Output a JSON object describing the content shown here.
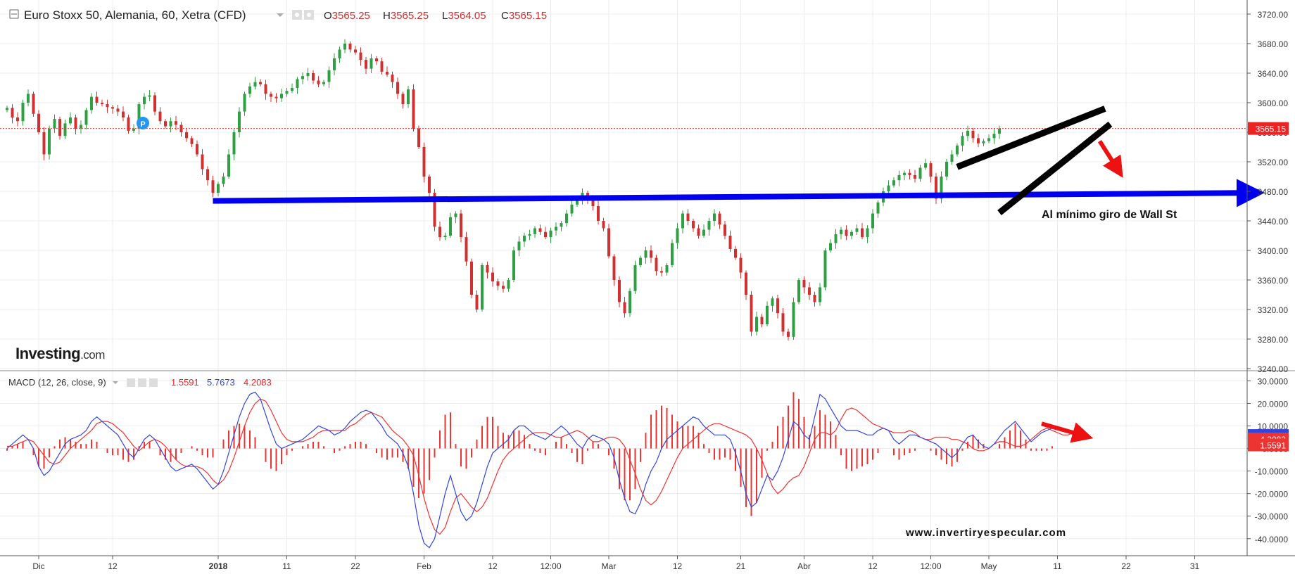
{
  "header": {
    "title": "Euro Stoxx 50, Alemania, 60, Xetra (CFD)",
    "ohlc": [
      {
        "k": "O",
        "v": "3565.25"
      },
      {
        "k": "H",
        "v": "3565.25"
      },
      {
        "k": "L",
        "v": "3564.05"
      },
      {
        "k": "C",
        "v": "3565.15"
      }
    ]
  },
  "macd_header": {
    "label": "MACD (12, 26, close, 9)",
    "hist": "1.5591",
    "macd": "5.7673",
    "signal": "4.2083"
  },
  "brand": {
    "name": "Investing",
    "suffix": ".com"
  },
  "annotation": "Al mínimo giro de Wall St",
  "watermark": "www.invertiryespecular.com",
  "colors": {
    "up": "#2ea043",
    "down": "#d0302f",
    "support_line": "#0000ee",
    "wedge": "#000000",
    "arrow": "#ee1111",
    "macd_line": "#3344dd",
    "signal_line": "#ee3333",
    "price_tag": "#ee2222"
  },
  "chart_data": [
    {
      "type": "candlestick",
      "ylim": [
        3240,
        3720
      ],
      "y_ticks": [
        "3720.00",
        "3680.00",
        "3640.00",
        "3600.00",
        "3560.00",
        "3520.00",
        "3480.00",
        "3440.00",
        "3400.00",
        "3360.00",
        "3320.00",
        "3280.00",
        "3240.00"
      ],
      "last_price": "3565.15",
      "x_ticks": [
        {
          "label": "Dic",
          "i": 6
        },
        {
          "label": "12",
          "i": 20
        },
        {
          "label": "2018",
          "i": 40
        },
        {
          "label": "11",
          "i": 53
        },
        {
          "label": "22",
          "i": 66
        },
        {
          "label": "Feb",
          "i": 79
        },
        {
          "label": "12",
          "i": 92
        },
        {
          "label": "12:00",
          "i": 103
        },
        {
          "label": "Mar",
          "i": 114
        },
        {
          "label": "12",
          "i": 127
        },
        {
          "label": "21",
          "i": 139
        },
        {
          "label": "Abr",
          "i": 151
        },
        {
          "label": "12",
          "i": 164
        },
        {
          "label": "12:00",
          "i": 175
        },
        {
          "label": "May",
          "i": 186
        },
        {
          "label": "11",
          "i": 199
        },
        {
          "label": "22",
          "i": 212
        },
        {
          "label": "31",
          "i": 225
        }
      ],
      "close": [
        3593,
        3580,
        3575,
        3600,
        3612,
        3585,
        3560,
        3530,
        3565,
        3578,
        3555,
        3572,
        3580,
        3565,
        3570,
        3590,
        3608,
        3600,
        3598,
        3594,
        3592,
        3588,
        3580,
        3562,
        3565,
        3598,
        3608,
        3610,
        3588,
        3575,
        3568,
        3575,
        3570,
        3560,
        3552,
        3544,
        3530,
        3510,
        3495,
        3478,
        3490,
        3500,
        3530,
        3560,
        3588,
        3612,
        3622,
        3628,
        3625,
        3612,
        3608,
        3606,
        3612,
        3616,
        3620,
        3632,
        3636,
        3640,
        3630,
        3625,
        3628,
        3644,
        3660,
        3672,
        3680,
        3672,
        3668,
        3658,
        3646,
        3660,
        3656,
        3642,
        3638,
        3628,
        3612,
        3598,
        3618,
        3565,
        3540,
        3500,
        3478,
        3432,
        3418,
        3420,
        3445,
        3450,
        3418,
        3385,
        3340,
        3320,
        3380,
        3370,
        3358,
        3352,
        3348,
        3360,
        3400,
        3412,
        3420,
        3422,
        3430,
        3425,
        3418,
        3427,
        3432,
        3437,
        3450,
        3462,
        3470,
        3478,
        3470,
        3460,
        3440,
        3430,
        3392,
        3360,
        3330,
        3315,
        3345,
        3380,
        3390,
        3400,
        3390,
        3372,
        3370,
        3380,
        3410,
        3430,
        3450,
        3440,
        3430,
        3420,
        3428,
        3440,
        3450,
        3435,
        3420,
        3402,
        3390,
        3370,
        3340,
        3290,
        3310,
        3300,
        3325,
        3335,
        3315,
        3290,
        3283,
        3330,
        3360,
        3350,
        3340,
        3330,
        3350,
        3400,
        3410,
        3422,
        3428,
        3420,
        3425,
        3430,
        3418,
        3430,
        3450,
        3465,
        3480,
        3488,
        3495,
        3502,
        3505,
        3502,
        3497,
        3512,
        3518,
        3500,
        3470,
        3500,
        3520,
        3530,
        3542,
        3555,
        3562,
        3552,
        3545,
        3548,
        3552,
        3558,
        3565
      ],
      "annotations": [
        {
          "kind": "support_line",
          "from": {
            "i": 39,
            "price": 3467
          },
          "to": {
            "i": 238,
            "price": 3478
          }
        },
        {
          "kind": "wedge_upper",
          "from": {
            "i": 180,
            "price": 3513
          },
          "to": {
            "i": 208,
            "price": 3592
          }
        },
        {
          "kind": "wedge_lower",
          "from": {
            "i": 188,
            "price": 3451
          },
          "to": {
            "i": 209,
            "price": 3571
          }
        },
        {
          "kind": "arrow",
          "from": {
            "i": 207,
            "price": 3548
          },
          "to": {
            "i": 211,
            "price": 3503
          }
        }
      ]
    },
    {
      "type": "macd",
      "ylim": [
        -46,
        32
      ],
      "y_ticks": [
        "30.0000",
        "20.0000",
        "10.0000",
        "0.0000",
        "-10.0000",
        "-20.0000",
        "-30.0000",
        "-40.0000"
      ],
      "macd_ref": [
        0,
        2,
        4,
        6,
        4,
        0,
        -8,
        -12,
        -10,
        -6,
        -2,
        2,
        4,
        5,
        6,
        8,
        12,
        14,
        12,
        10,
        8,
        6,
        2,
        -2,
        -4,
        0,
        4,
        6,
        4,
        0,
        -4,
        -8,
        -10,
        -9,
        -8,
        -7,
        -9,
        -12,
        -15,
        -18,
        -16,
        -10,
        -2,
        6,
        14,
        20,
        24,
        25,
        22,
        15,
        8,
        2,
        0,
        1,
        2,
        3,
        4,
        6,
        8,
        10,
        9,
        8,
        6,
        7,
        9,
        12,
        14,
        16,
        17,
        16,
        13,
        10,
        6,
        4,
        2,
        -2,
        -8,
        -20,
        -34,
        -42,
        -44,
        -40,
        -30,
        -20,
        -12,
        -20,
        -28,
        -32,
        -30,
        -24,
        -16,
        -8,
        -2,
        0,
        2,
        4,
        8,
        10,
        10,
        8,
        6,
        5,
        4,
        6,
        8,
        10,
        8,
        5,
        2,
        0,
        4,
        6,
        5,
        4,
        2,
        -4,
        -14,
        -22,
        -28,
        -29,
        -24,
        -16,
        -10,
        -6,
        0,
        4,
        6,
        8,
        10,
        12,
        14,
        13,
        10,
        8,
        6,
        6,
        6,
        4,
        -2,
        -10,
        -20,
        -26,
        -24,
        -18,
        -12,
        -14,
        -10,
        -4,
        4,
        12,
        10,
        6,
        4,
        14,
        24,
        22,
        18,
        14,
        10,
        8,
        8,
        8,
        7,
        6,
        6,
        8,
        9,
        8,
        4,
        2,
        4,
        6,
        6,
        5,
        4,
        3,
        2,
        0,
        -2,
        -4,
        -2,
        2,
        5,
        6,
        3,
        1,
        0,
        2,
        5,
        8,
        10,
        12,
        9,
        6,
        3,
        5,
        7,
        8,
        9
      ],
      "signal_ref": [
        1,
        1,
        2,
        3,
        4,
        3,
        0,
        -3,
        -6,
        -7,
        -6,
        -3,
        0,
        2,
        4,
        6,
        8,
        11,
        12,
        12,
        11,
        9,
        7,
        4,
        1,
        -1,
        1,
        3,
        4,
        3,
        1,
        -2,
        -5,
        -7,
        -8,
        -8,
        -8,
        -9,
        -11,
        -14,
        -16,
        -14,
        -10,
        -4,
        3,
        10,
        16,
        20,
        22,
        21,
        17,
        12,
        7,
        4,
        3,
        3,
        3,
        4,
        5,
        7,
        8,
        8,
        8,
        8,
        8,
        10,
        11,
        13,
        15,
        16,
        15,
        14,
        11,
        8,
        6,
        4,
        1,
        -3,
        -12,
        -22,
        -30,
        -36,
        -38,
        -35,
        -28,
        -22,
        -20,
        -23,
        -26,
        -28,
        -26,
        -22,
        -16,
        -10,
        -5,
        -2,
        0,
        2,
        4,
        6,
        7,
        7,
        7,
        6,
        5,
        5,
        6,
        7,
        8,
        7,
        5,
        3,
        3,
        4,
        5,
        5,
        4,
        1,
        -5,
        -11,
        -18,
        -23,
        -25,
        -23,
        -19,
        -14,
        -9,
        -4,
        0,
        2,
        4,
        6,
        8,
        10,
        11,
        11,
        10,
        9,
        8,
        7,
        6,
        4,
        0,
        -5,
        -11,
        -17,
        -20,
        -18,
        -15,
        -13,
        -12,
        -8,
        -2,
        4,
        7,
        7,
        6,
        8,
        13,
        17,
        18,
        17,
        15,
        13,
        11,
        10,
        9,
        8,
        7,
        7,
        7,
        8,
        7,
        5,
        4,
        4,
        5,
        5,
        5,
        4,
        4,
        3,
        2,
        0,
        -1,
        -1,
        0,
        2,
        3,
        3,
        2,
        1,
        1,
        2,
        4,
        6,
        8,
        9,
        8,
        7,
        6,
        6,
        7,
        8
      ],
      "arrow": {
        "from": {
          "i": 196,
          "value": 11
        },
        "to": {
          "i": 205,
          "value": 5
        }
      }
    }
  ]
}
